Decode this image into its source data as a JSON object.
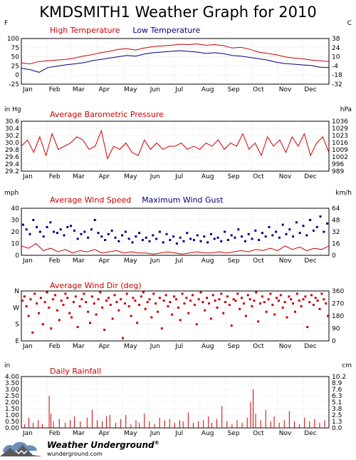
{
  "page": {
    "title": "KMDSMITH1 Weather Graph for 2010"
  },
  "branding": {
    "name": "Weather Underground",
    "registered": "®",
    "url": "wunderground.com"
  },
  "colors": {
    "primary": "#cc0000",
    "secondary": "#000080",
    "grid": "#b0b0b0"
  },
  "months": [
    "Jan",
    "Feb",
    "Mar",
    "Apr",
    "May",
    "Jun",
    "Jul",
    "Aug",
    "Sep",
    "Oct",
    "Nov",
    "Dec"
  ],
  "chart_data": [
    {
      "type": "line",
      "id": "temperature",
      "left_unit": "F",
      "right_unit": "C",
      "yticks_left": [
        "100",
        "75",
        "50",
        "25",
        "0",
        "-25"
      ],
      "yticks_right": [
        "38",
        "24",
        "10",
        "-4",
        "-18",
        "-32"
      ],
      "ylim": [
        -25,
        110
      ],
      "series": [
        {
          "name": "High Temperature",
          "color": "#cc0000",
          "values": [
            38,
            35,
            42,
            44,
            46,
            48,
            52,
            58,
            62,
            68,
            72,
            78,
            80,
            76,
            82,
            86,
            88,
            90,
            93,
            92,
            94,
            90,
            92,
            89,
            82,
            84,
            78,
            70,
            66,
            62,
            56,
            52,
            50,
            46,
            44,
            42
          ]
        },
        {
          "name": "Low Temperature",
          "color": "#000080",
          "values": [
            22,
            18,
            10,
            24,
            28,
            32,
            35,
            38,
            44,
            48,
            52,
            56,
            60,
            58,
            64,
            68,
            70,
            72,
            74,
            72,
            70,
            66,
            68,
            65,
            60,
            58,
            54,
            50,
            46,
            40,
            36,
            34,
            32,
            30,
            25,
            24
          ]
        }
      ]
    },
    {
      "type": "line",
      "id": "pressure",
      "left_unit": "in Hg",
      "right_unit": "hPa",
      "yticks_left": [
        "30.6",
        "30.4",
        "30.2",
        "30.0",
        "29.8",
        "29.6",
        "29.4",
        "29.2"
      ],
      "yticks_right": [
        "1036",
        "1029",
        "1023",
        "1016",
        "1009",
        "1002",
        "996",
        "989"
      ],
      "ylim": [
        29.1,
        30.7
      ],
      "series": [
        {
          "name": "Average Barometric Pressure",
          "color": "#cc0000",
          "values": [
            29.9,
            30.1,
            29.7,
            30.2,
            29.6,
            30.3,
            29.8,
            29.9,
            30.0,
            30.2,
            30.1,
            29.8,
            29.9,
            30.4,
            29.5,
            29.9,
            29.8,
            30.0,
            29.7,
            29.6,
            30.1,
            29.8,
            30.0,
            29.8,
            29.9,
            29.9,
            30.0,
            29.8,
            29.9,
            29.8,
            30.0,
            29.9,
            30.1,
            29.8,
            30.0,
            29.9,
            30.3,
            29.8,
            30.0,
            29.6,
            30.2,
            29.9,
            30.1,
            29.7,
            30.2,
            29.9,
            30.3,
            29.6,
            30.0,
            30.2,
            29.7
          ]
        }
      ]
    },
    {
      "type": "scatter",
      "id": "wind",
      "left_unit": "mph",
      "right_unit": "km/h",
      "yticks_left": [
        "40",
        "30",
        "20",
        "10",
        "0"
      ],
      "yticks_right": [
        "64",
        "48",
        "32",
        "16",
        "0"
      ],
      "ylim": [
        0,
        40
      ],
      "series": [
        {
          "name": "Average Wind Speed",
          "color": "#cc0000",
          "style": "line",
          "values": [
            8,
            6,
            10,
            4,
            6,
            3,
            5,
            2,
            4,
            3,
            5,
            2,
            3,
            4,
            2,
            3,
            2,
            2,
            1,
            2,
            3,
            2,
            1,
            2,
            3,
            2,
            2,
            3,
            2,
            3,
            4,
            3,
            5,
            4,
            6,
            4,
            8,
            5,
            7,
            4,
            6,
            5,
            8
          ]
        },
        {
          "name": "Maximum Wind Gust",
          "color": "#000080",
          "style": "points",
          "values": [
            26,
            22,
            18,
            30,
            24,
            20,
            16,
            24,
            28,
            20,
            19,
            22,
            17,
            24,
            25,
            21,
            14,
            18,
            20,
            15,
            22,
            30,
            19,
            16,
            13,
            18,
            21,
            15,
            12,
            17,
            20,
            14,
            11,
            16,
            19,
            13,
            15,
            12,
            17,
            14,
            20,
            11,
            18,
            13,
            16,
            10,
            15,
            12,
            19,
            14,
            13,
            17,
            12,
            16,
            11,
            18,
            14,
            15,
            12,
            20,
            13,
            17,
            15,
            22,
            16,
            12,
            18,
            14,
            21,
            13,
            19,
            16,
            24,
            17,
            20,
            15,
            26,
            18,
            22,
            16,
            28,
            19,
            25,
            17,
            30,
            21,
            24,
            33,
            20,
            27
          ]
        }
      ]
    },
    {
      "type": "scatter",
      "id": "wind-dir",
      "left_unit": "",
      "right_unit": "",
      "yticks_left": [
        "N",
        "W",
        "S",
        "E"
      ],
      "yticks_right": [
        "360",
        "270",
        "180",
        "90",
        "0"
      ],
      "ylim": [
        0,
        360
      ],
      "series": [
        {
          "name": "Average Wind Dir (deg)",
          "color": "#cc0000",
          "style": "points",
          "values": [
            290,
            320,
            250,
            180,
            300,
            60,
            340,
            270,
            200,
            310,
            120,
            280,
            350,
            240,
            90,
            300,
            330,
            220,
            150,
            290,
            260,
            340,
            310,
            200,
            170,
            280,
            320,
            100,
            250,
            300,
            340,
            280,
            210,
            130,
            320,
            270,
            190,
            300,
            350,
            240,
            80,
            290,
            310,
            260,
            160,
            330,
            280,
            220,
            300,
            20,
            270,
            340,
            250,
            180,
            310,
            290,
            130,
            260,
            320,
            350,
            230,
            280,
            300,
            170,
            340,
            270,
            210,
            310,
            90,
            290,
            330,
            250,
            280,
            190,
            320,
            300,
            240,
            150,
            340,
            270,
            310,
            200,
            290,
            330,
            260,
            120,
            300,
            350,
            280,
            220,
            310,
            270,
            160,
            330,
            290,
            240,
            300,
            340,
            200,
            280,
            320,
            260,
            110,
            300,
            290,
            340,
            230,
            310,
            270,
            180,
            330,
            300,
            250,
            290,
            350,
            140,
            270,
            320,
            280,
            210,
            300,
            340,
            260,
            190,
            310,
            290,
            330,
            240,
            280,
            170,
            320,
            300,
            270,
            210,
            340,
            290,
            250,
            300,
            320,
            100,
            280,
            330,
            260,
            310,
            290,
            230,
            340,
            300,
            270,
            180
          ]
        }
      ]
    },
    {
      "type": "bar",
      "id": "rainfall",
      "left_unit": "in",
      "right_unit": "cm",
      "yticks_left": [
        "4.00",
        "3.50",
        "3.00",
        "2.50",
        "2.00",
        "1.50",
        "1.00",
        "0.50",
        "0.00"
      ],
      "yticks_right": [
        "10.2",
        "8.9",
        "7.6",
        "6.3",
        "5.1",
        "3.8",
        "2.5",
        "1.3",
        "0.0"
      ],
      "ylim": [
        0,
        4.0
      ],
      "series": [
        {
          "name": "Daily Rainfall",
          "color": "#cc0000",
          "days": [
            4,
            9,
            14,
            20,
            25,
            33,
            35,
            38,
            45,
            52,
            58,
            63,
            70,
            78,
            84,
            90,
            96,
            101,
            105,
            112,
            118,
            124,
            130,
            136,
            140,
            146,
            152,
            158,
            164,
            170,
            176,
            182,
            188,
            192,
            198,
            204,
            210,
            216,
            222,
            226,
            232,
            238,
            244,
            250,
            256,
            262,
            268,
            272,
            275,
            278,
            284,
            290,
            296,
            300,
            306,
            312,
            318,
            324,
            330,
            336,
            342,
            348,
            354,
            360
          ],
          "values": [
            0.3,
            0.8,
            0.4,
            0.6,
            0.3,
            2.5,
            1.1,
            0.5,
            0.7,
            0.4,
            0.6,
            0.9,
            0.5,
            0.8,
            1.4,
            0.6,
            0.5,
            0.9,
            1.0,
            0.4,
            0.7,
            1.0,
            0.3,
            0.6,
            0.4,
            1.1,
            0.5,
            0.3,
            0.8,
            0.6,
            0.7,
            0.4,
            0.6,
            0.5,
            1.2,
            0.4,
            0.5,
            0.6,
            0.9,
            0.4,
            0.7,
            1.7,
            0.5,
            0.3,
            0.6,
            0.4,
            0.8,
            2.0,
            3.0,
            1.1,
            0.6,
            1.4,
            0.5,
            0.9,
            0.4,
            0.6,
            1.3,
            0.5,
            0.3,
            0.8,
            0.5,
            0.7,
            0.4,
            0.6
          ]
        }
      ]
    }
  ]
}
